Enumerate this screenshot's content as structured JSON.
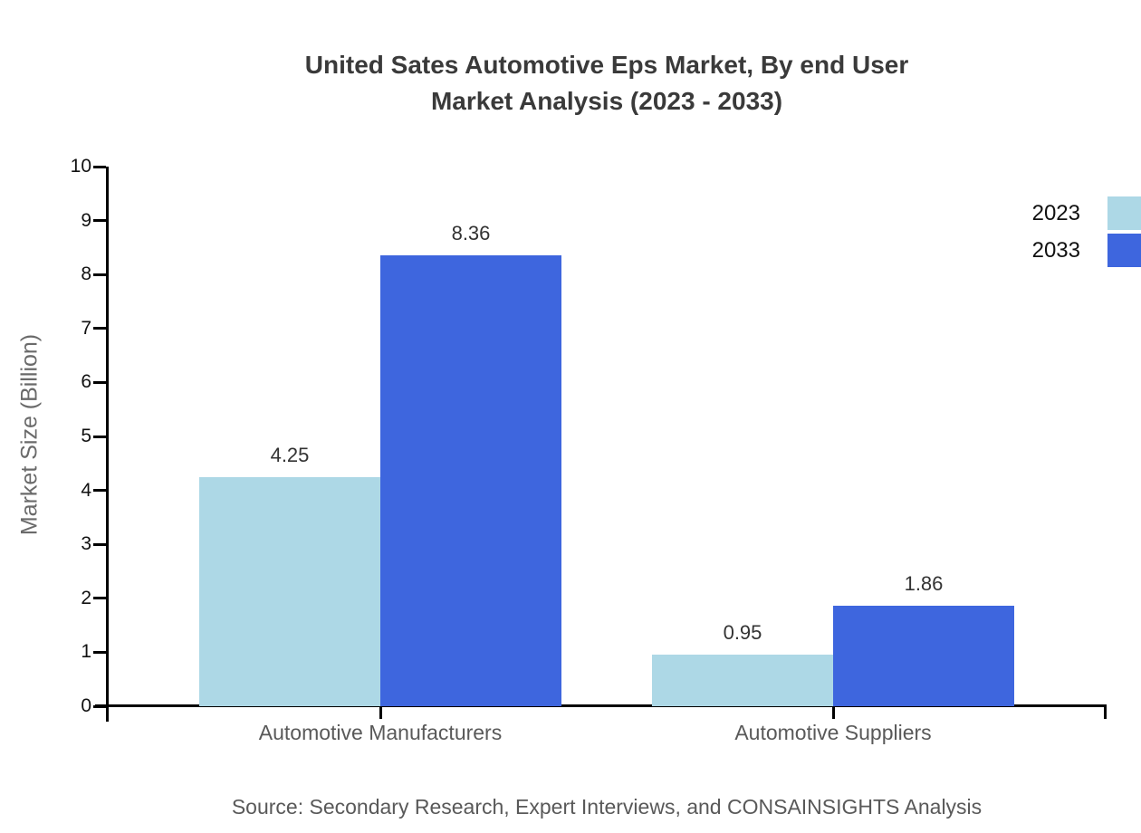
{
  "title": {
    "line1": "United Sates Automotive Eps Market, By end User",
    "line2": "Market Analysis (2023 - 2033)"
  },
  "chart_data": {
    "type": "bar",
    "categories": [
      "Automotive Manufacturers",
      "Automotive Suppliers"
    ],
    "series": [
      {
        "name": "2023",
        "color": "#ADD8E6",
        "values": [
          4.25,
          0.95
        ]
      },
      {
        "name": "2033",
        "color": "#3E66DE",
        "values": [
          8.36,
          1.86
        ]
      }
    ],
    "title": "United Sates Automotive Eps Market, By end User Market Analysis (2023 - 2033)",
    "xlabel": "",
    "ylabel": "Market Size (Billion)",
    "ylim": [
      0,
      10
    ],
    "ytick_step": 1,
    "yticks": [
      0,
      1,
      2,
      3,
      4,
      5,
      6,
      7,
      8,
      9,
      10
    ],
    "grid": false,
    "legend_position": "top-right",
    "value_labels": [
      "4.25",
      "8.36",
      "0.95",
      "1.86"
    ]
  },
  "source_note": "Source: Secondary Research, Expert Interviews, and CONSAINSIGHTS Analysis",
  "colors": {
    "series_2023": "#ADD8E6",
    "series_2033": "#3E66DE",
    "axis": "#000000",
    "title_text": "#3a3a3a"
  }
}
